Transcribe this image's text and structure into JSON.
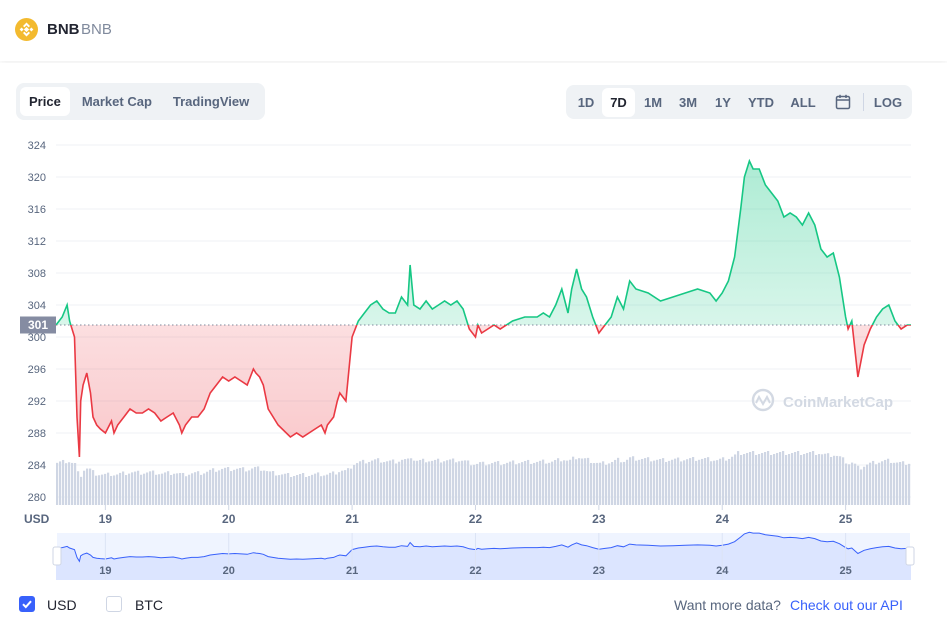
{
  "header": {
    "coin_name": "BNB",
    "coin_symbol": "BNB",
    "logo_color": "#F3BA2F"
  },
  "tabs": [
    {
      "label": "Price",
      "active": true
    },
    {
      "label": "Market Cap",
      "active": false
    },
    {
      "label": "TradingView",
      "active": false
    }
  ],
  "ranges": [
    {
      "label": "1D",
      "active": false
    },
    {
      "label": "7D",
      "active": true
    },
    {
      "label": "1M",
      "active": false
    },
    {
      "label": "3M",
      "active": false
    },
    {
      "label": "1Y",
      "active": false
    },
    {
      "label": "YTD",
      "active": false
    },
    {
      "label": "ALL",
      "active": false
    }
  ],
  "calendar_icon": "calendar-icon",
  "log_label": "LOG",
  "watermark": "CoinMarketCap",
  "footer": {
    "usd_label": "USD",
    "usd_checked": true,
    "btc_label": "BTC",
    "btc_checked": false,
    "api_text": "Want more data?",
    "api_link": "Check out our API"
  },
  "colors": {
    "up": "#16C784",
    "down": "#EA3943",
    "accent": "#3861FB",
    "volume": "#CFD6E4"
  },
  "chart_data": {
    "type": "line",
    "ylabel": "USD",
    "y_ticks": [
      280,
      284,
      288,
      292,
      296,
      300,
      304,
      308,
      312,
      316,
      320,
      324
    ],
    "ylim": [
      279,
      325
    ],
    "x_ticks": [
      "19",
      "20",
      "21",
      "22",
      "23",
      "24",
      "25"
    ],
    "xlim": [
      18.6,
      25.53
    ],
    "reference_value": 301.5,
    "reference_label": "301",
    "series": [
      {
        "x": [
          18.6,
          18.65,
          18.69,
          18.71,
          18.75,
          18.77,
          18.79,
          18.8,
          18.82,
          18.85,
          18.88,
          18.9,
          18.93,
          18.96,
          19.0,
          19.05,
          19.07,
          19.1,
          19.15,
          19.2,
          19.25,
          19.3,
          19.35,
          19.4,
          19.45,
          19.5,
          19.55,
          19.6,
          19.62,
          19.65,
          19.7,
          19.75,
          19.8,
          19.85,
          19.9,
          19.95,
          20.0,
          20.05,
          20.1,
          20.15,
          20.2,
          20.22,
          20.25,
          20.28,
          20.32,
          20.4,
          20.5,
          20.55,
          20.6,
          20.7,
          20.75,
          20.78,
          20.8,
          20.85,
          20.88,
          20.9,
          20.95,
          21.0,
          21.05,
          21.1,
          21.15,
          21.2,
          21.25,
          21.3,
          21.35,
          21.4,
          21.45,
          21.47,
          21.5,
          21.55,
          21.6,
          21.65,
          21.7,
          21.75,
          21.8,
          21.85,
          21.9,
          21.95,
          22.0,
          22.02,
          22.05,
          22.1,
          22.15,
          22.2,
          22.3,
          22.4,
          22.5,
          22.55,
          22.6,
          22.65,
          22.7,
          22.75,
          22.78,
          22.82,
          22.86,
          22.9,
          22.95,
          23.0,
          23.05,
          23.1,
          23.15,
          23.2,
          23.25,
          23.3,
          23.4,
          23.5,
          23.6,
          23.7,
          23.8,
          23.9,
          23.95,
          24.0,
          24.05,
          24.1,
          24.15,
          24.18,
          24.22,
          24.25,
          24.3,
          24.35,
          24.4,
          24.45,
          24.5,
          24.55,
          24.6,
          24.65,
          24.7,
          24.75,
          24.8,
          24.85,
          24.9,
          24.95,
          25.0,
          25.02,
          25.05,
          25.1,
          25.15,
          25.2,
          25.25,
          25.3,
          25.35,
          25.4,
          25.45,
          25.5,
          25.53
        ],
        "y": [
          301.5,
          302.5,
          304,
          302,
          300,
          290,
          285,
          292,
          294,
          295.5,
          293,
          290,
          289,
          288.5,
          288,
          289.5,
          288,
          289,
          290,
          291,
          290.5,
          290.5,
          291,
          290.5,
          289.5,
          290,
          290.5,
          289,
          288,
          289,
          290,
          290,
          291,
          293,
          294,
          295,
          294.5,
          295,
          294.5,
          294,
          296,
          295.5,
          295,
          294,
          291,
          289,
          287.5,
          288,
          287.5,
          288.5,
          289,
          288,
          289,
          290,
          292,
          293,
          292,
          300,
          302,
          303,
          304,
          304.5,
          303.5,
          303,
          303,
          305,
          304,
          309,
          304,
          303.5,
          304.5,
          303.5,
          304,
          304.5,
          304,
          304.5,
          303.5,
          301,
          300,
          301.5,
          300.5,
          301,
          301.5,
          301,
          302,
          302.5,
          302.5,
          303,
          302.5,
          304,
          306,
          303,
          306,
          308.5,
          306,
          305,
          302.5,
          300.5,
          301.5,
          302.5,
          305,
          303.5,
          307,
          306,
          305.5,
          304.5,
          305,
          305.5,
          306,
          305.5,
          304.5,
          305.5,
          307,
          310,
          316,
          320,
          322,
          321,
          321,
          319,
          318,
          317,
          315,
          315.5,
          315,
          314,
          315.5,
          314,
          311,
          310,
          310.5,
          307.5,
          302.5,
          301,
          302,
          295,
          299,
          301,
          302.5,
          303.5,
          304,
          302,
          301,
          301.5,
          301.5
        ]
      }
    ]
  }
}
